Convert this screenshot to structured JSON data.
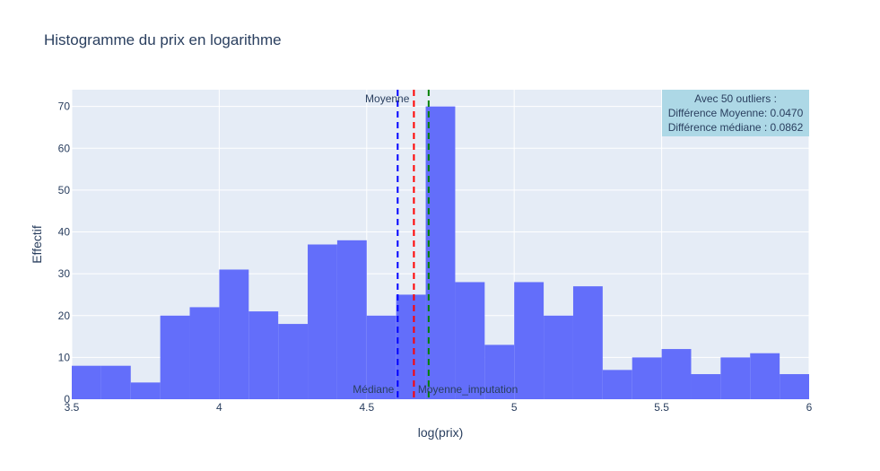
{
  "chart_data": {
    "type": "bar",
    "title": "Histogramme du prix en logarithme",
    "xlabel": "log(prix)",
    "ylabel": "Effectif",
    "xlim": [
      3.5,
      6
    ],
    "ylim": [
      0,
      74
    ],
    "xticks": [
      3.5,
      4,
      4.5,
      5,
      5.5,
      6
    ],
    "xtick_labels": [
      "3.5",
      "4",
      "4.5",
      "5",
      "5.5",
      "6"
    ],
    "yticks": [
      0,
      10,
      20,
      30,
      40,
      50,
      60,
      70
    ],
    "ytick_labels": [
      "0",
      "10",
      "20",
      "30",
      "40",
      "50",
      "60",
      "70"
    ],
    "bin_width": 0.1,
    "bins": [
      {
        "x0": 3.5,
        "x1": 3.6,
        "count": 8
      },
      {
        "x0": 3.6,
        "x1": 3.7,
        "count": 8
      },
      {
        "x0": 3.7,
        "x1": 3.8,
        "count": 4
      },
      {
        "x0": 3.8,
        "x1": 3.9,
        "count": 20
      },
      {
        "x0": 3.9,
        "x1": 4.0,
        "count": 22
      },
      {
        "x0": 4.0,
        "x1": 4.1,
        "count": 31
      },
      {
        "x0": 4.1,
        "x1": 4.2,
        "count": 21
      },
      {
        "x0": 4.2,
        "x1": 4.3,
        "count": 18
      },
      {
        "x0": 4.3,
        "x1": 4.4,
        "count": 37
      },
      {
        "x0": 4.4,
        "x1": 4.5,
        "count": 38
      },
      {
        "x0": 4.5,
        "x1": 4.6,
        "count": 20
      },
      {
        "x0": 4.6,
        "x1": 4.7,
        "count": 25
      },
      {
        "x0": 4.7,
        "x1": 4.8,
        "count": 70
      },
      {
        "x0": 4.8,
        "x1": 4.9,
        "count": 28
      },
      {
        "x0": 4.9,
        "x1": 5.0,
        "count": 13
      },
      {
        "x0": 5.0,
        "x1": 5.1,
        "count": 28
      },
      {
        "x0": 5.1,
        "x1": 5.2,
        "count": 20
      },
      {
        "x0": 5.2,
        "x1": 5.3,
        "count": 27
      },
      {
        "x0": 5.3,
        "x1": 5.4,
        "count": 7
      },
      {
        "x0": 5.4,
        "x1": 5.5,
        "count": 10
      },
      {
        "x0": 5.5,
        "x1": 5.6,
        "count": 12
      },
      {
        "x0": 5.6,
        "x1": 5.7,
        "count": 6
      },
      {
        "x0": 5.7,
        "x1": 5.8,
        "count": 10
      },
      {
        "x0": 5.8,
        "x1": 5.9,
        "count": 11
      },
      {
        "x0": 5.9,
        "x1": 6.0,
        "count": 6
      }
    ],
    "vlines": [
      {
        "name": "Médiane",
        "x": 4.605,
        "color": "#0000ff",
        "label_position": "bottom-left"
      },
      {
        "name": "Moyenne",
        "x": 4.66,
        "color": "#ff0000",
        "label_position": "top-left"
      },
      {
        "name": "Moyenne_imputation",
        "x": 4.71,
        "color": "#008000",
        "label_position": "bottom-right"
      }
    ],
    "annotation_box": {
      "lines": [
        "Avec 50 outliers :",
        "Différence Moyenne: 0.0470",
        "Différence médiane : 0.0862"
      ],
      "position": "top-right",
      "background": "#add8e6"
    },
    "bar_color": "#636efa",
    "plot_background": "#e5ecf6",
    "grid": true,
    "legend": "none"
  }
}
